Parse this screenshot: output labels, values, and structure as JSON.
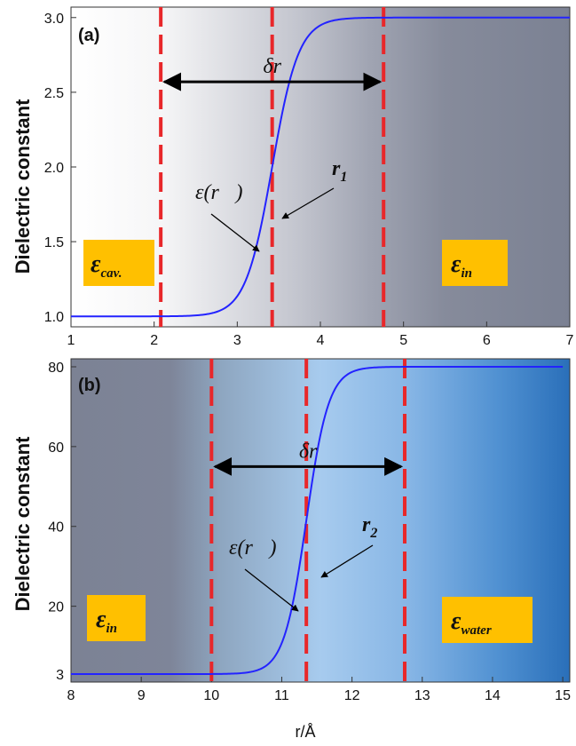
{
  "chart_data": [
    {
      "type": "line",
      "panel_label": "(a)",
      "ylabel": "Dielectric  constant",
      "xlim": [
        1,
        7
      ],
      "ylim": [
        0.93,
        3.07
      ],
      "x_ticks": [
        1,
        2,
        3,
        4,
        5,
        6,
        7
      ],
      "y_ticks": [
        1.0,
        1.5,
        2.0,
        2.5,
        3.0
      ],
      "y_tick_labels": [
        "1.0",
        "1.5",
        "2.0",
        "2.5",
        "3.0"
      ],
      "series": [
        {
          "color": "#2323ff",
          "low": 1,
          "high": 3,
          "center": 3.42,
          "width": 0.16,
          "x_range": [
            1,
            7
          ]
        }
      ],
      "dashed_lines_x": [
        2.08,
        3.42,
        4.76
      ],
      "arrow": {
        "label": "δr",
        "from_x": 2.08,
        "to_x": 4.76,
        "y": 2.57
      },
      "annotations": {
        "curve": "ε(r⃗)",
        "radius_main": "r",
        "radius_sub": "1"
      },
      "boxes": [
        {
          "main": "ε",
          "sub": "cav.",
          "region": "left"
        },
        {
          "main": "ε",
          "sub": "in",
          "region": "right"
        }
      ],
      "background_gradient": [
        "#ffffff",
        "#7e8496"
      ]
    },
    {
      "type": "line",
      "panel_label": "(b)",
      "ylabel": "Dielectric  constant",
      "xlim": [
        8,
        15.1
      ],
      "ylim": [
        1,
        82
      ],
      "x_ticks": [
        8,
        9,
        10,
        11,
        12,
        13,
        14,
        15
      ],
      "y_ticks": [
        3,
        20,
        40,
        60,
        80
      ],
      "y_tick_labels": [
        "3",
        "20",
        "40",
        "60",
        "80"
      ],
      "series": [
        {
          "color": "#2323ff",
          "low": 3,
          "high": 80,
          "center": 11.35,
          "width": 0.16,
          "x_range": [
            8,
            15
          ]
        }
      ],
      "dashed_lines_x": [
        10.0,
        11.35,
        12.75
      ],
      "arrow": {
        "label": "δr",
        "from_x": 10.0,
        "to_x": 12.75,
        "y": 55
      },
      "annotations": {
        "curve": "ε(r⃗)",
        "radius_main": "r",
        "radius_sub": "2"
      },
      "boxes": [
        {
          "main": "ε",
          "sub": "in",
          "region": "left"
        },
        {
          "main": "ε",
          "sub": "water",
          "region": "right"
        }
      ],
      "background_gradient": [
        "#7e8496",
        "#9fc6ec",
        "#2b73bd"
      ]
    }
  ],
  "xlabel": "r/Å"
}
